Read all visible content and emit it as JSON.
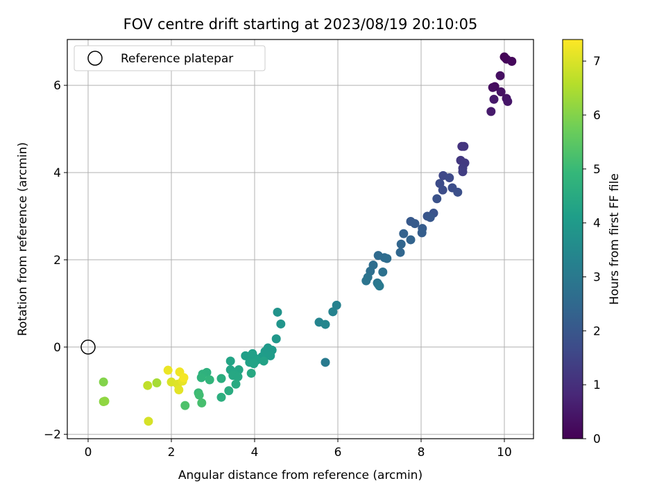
{
  "chart_data": {
    "type": "scatter",
    "title": "FOV centre drift starting at 2023/08/19 20:10:05",
    "xlabel": "Angular distance from reference (arcmin)",
    "ylabel": "Rotation from reference (arcmin)",
    "xlim": [
      -0.5,
      10.7
    ],
    "ylim": [
      -2.1,
      7.05
    ],
    "xticks": [
      0,
      2,
      4,
      6,
      8,
      10
    ],
    "yticks": [
      -2,
      0,
      2,
      4,
      6
    ],
    "grid": true,
    "legend": {
      "placement": "top-left",
      "entries": [
        "Reference platepar"
      ]
    },
    "reference_point": {
      "x": 0,
      "y": 0
    },
    "colormap": "viridis",
    "colorbar": {
      "label": "Hours from first FF file",
      "range": [
        0,
        7.4
      ],
      "ticks": [
        0,
        1,
        2,
        3,
        4,
        5,
        6,
        7
      ]
    },
    "points": [
      {
        "x": 10.0,
        "y": 6.65,
        "t": 0.05
      },
      {
        "x": 10.05,
        "y": 6.6,
        "t": 0.1
      },
      {
        "x": 10.18,
        "y": 6.55,
        "t": 0.15
      },
      {
        "x": 9.77,
        "y": 5.97,
        "t": 0.2
      },
      {
        "x": 9.72,
        "y": 5.95,
        "t": 0.25
      },
      {
        "x": 9.9,
        "y": 6.22,
        "t": 0.3
      },
      {
        "x": 9.92,
        "y": 5.85,
        "t": 0.35
      },
      {
        "x": 10.05,
        "y": 5.7,
        "t": 0.4
      },
      {
        "x": 10.08,
        "y": 5.63,
        "t": 0.45
      },
      {
        "x": 9.75,
        "y": 5.68,
        "t": 0.5
      },
      {
        "x": 9.68,
        "y": 5.4,
        "t": 0.55
      },
      {
        "x": 8.98,
        "y": 4.6,
        "t": 1.1
      },
      {
        "x": 9.03,
        "y": 4.6,
        "t": 1.15
      },
      {
        "x": 8.95,
        "y": 4.28,
        "t": 1.2
      },
      {
        "x": 9.05,
        "y": 4.22,
        "t": 1.25
      },
      {
        "x": 9.0,
        "y": 4.1,
        "t": 1.3
      },
      {
        "x": 9.0,
        "y": 4.02,
        "t": 1.35
      },
      {
        "x": 8.53,
        "y": 3.93,
        "t": 1.6
      },
      {
        "x": 8.68,
        "y": 3.88,
        "t": 1.65
      },
      {
        "x": 8.45,
        "y": 3.75,
        "t": 1.7
      },
      {
        "x": 8.52,
        "y": 3.6,
        "t": 1.72
      },
      {
        "x": 8.75,
        "y": 3.65,
        "t": 1.75
      },
      {
        "x": 8.88,
        "y": 3.55,
        "t": 1.8
      },
      {
        "x": 8.38,
        "y": 3.4,
        "t": 1.85
      },
      {
        "x": 8.3,
        "y": 3.07,
        "t": 1.9
      },
      {
        "x": 8.15,
        "y": 3.0,
        "t": 1.95
      },
      {
        "x": 8.22,
        "y": 2.97,
        "t": 2.0
      },
      {
        "x": 7.75,
        "y": 2.88,
        "t": 2.05
      },
      {
        "x": 7.85,
        "y": 2.83,
        "t": 2.1
      },
      {
        "x": 8.03,
        "y": 2.72,
        "t": 2.15
      },
      {
        "x": 8.02,
        "y": 2.62,
        "t": 2.2
      },
      {
        "x": 7.58,
        "y": 2.6,
        "t": 2.3
      },
      {
        "x": 7.75,
        "y": 2.46,
        "t": 2.35
      },
      {
        "x": 7.52,
        "y": 2.36,
        "t": 2.4
      },
      {
        "x": 7.5,
        "y": 2.17,
        "t": 2.45
      },
      {
        "x": 6.97,
        "y": 2.1,
        "t": 2.55
      },
      {
        "x": 7.12,
        "y": 2.05,
        "t": 2.6
      },
      {
        "x": 7.18,
        "y": 2.03,
        "t": 2.62
      },
      {
        "x": 6.85,
        "y": 1.88,
        "t": 2.65
      },
      {
        "x": 6.78,
        "y": 1.74,
        "t": 2.7
      },
      {
        "x": 7.08,
        "y": 1.72,
        "t": 2.75
      },
      {
        "x": 6.72,
        "y": 1.6,
        "t": 2.8
      },
      {
        "x": 6.68,
        "y": 1.52,
        "t": 2.85
      },
      {
        "x": 6.95,
        "y": 1.47,
        "t": 2.9
      },
      {
        "x": 6.97,
        "y": 1.44,
        "t": 2.95
      },
      {
        "x": 7.0,
        "y": 1.4,
        "t": 3.0
      },
      {
        "x": 5.7,
        "y": -0.35,
        "t": 3.05
      },
      {
        "x": 5.97,
        "y": 0.96,
        "t": 3.25
      },
      {
        "x": 5.88,
        "y": 0.81,
        "t": 3.3
      },
      {
        "x": 5.55,
        "y": 0.57,
        "t": 3.35
      },
      {
        "x": 5.7,
        "y": 0.52,
        "t": 3.4
      },
      {
        "x": 4.55,
        "y": 0.8,
        "t": 3.8
      },
      {
        "x": 4.63,
        "y": 0.53,
        "t": 3.85
      },
      {
        "x": 4.52,
        "y": 0.19,
        "t": 3.9
      },
      {
        "x": 4.32,
        "y": -0.02,
        "t": 3.95
      },
      {
        "x": 4.42,
        "y": -0.07,
        "t": 4.0
      },
      {
        "x": 4.25,
        "y": -0.1,
        "t": 4.02
      },
      {
        "x": 4.38,
        "y": -0.2,
        "t": 4.05
      },
      {
        "x": 4.18,
        "y": -0.22,
        "t": 4.08
      },
      {
        "x": 4.0,
        "y": -0.25,
        "t": 4.1
      },
      {
        "x": 3.9,
        "y": -0.2,
        "t": 4.12
      },
      {
        "x": 3.78,
        "y": -0.2,
        "t": 4.15
      },
      {
        "x": 3.95,
        "y": -0.15,
        "t": 4.18
      },
      {
        "x": 4.05,
        "y": -0.3,
        "t": 4.2
      },
      {
        "x": 3.88,
        "y": -0.35,
        "t": 4.22
      },
      {
        "x": 4.22,
        "y": -0.32,
        "t": 4.25
      },
      {
        "x": 3.98,
        "y": -0.38,
        "t": 4.28
      },
      {
        "x": 3.42,
        "y": -0.32,
        "t": 4.3
      },
      {
        "x": 3.42,
        "y": -0.52,
        "t": 4.32
      },
      {
        "x": 3.62,
        "y": -0.52,
        "t": 4.35
      },
      {
        "x": 3.5,
        "y": -0.6,
        "t": 4.38
      },
      {
        "x": 3.48,
        "y": -0.65,
        "t": 4.4
      },
      {
        "x": 3.6,
        "y": -0.68,
        "t": 4.42
      },
      {
        "x": 3.92,
        "y": -0.6,
        "t": 4.45
      },
      {
        "x": 3.55,
        "y": -0.85,
        "t": 4.5
      },
      {
        "x": 3.38,
        "y": -1.0,
        "t": 4.55
      },
      {
        "x": 3.2,
        "y": -0.72,
        "t": 4.6
      },
      {
        "x": 3.2,
        "y": -1.15,
        "t": 4.65
      },
      {
        "x": 2.85,
        "y": -0.58,
        "t": 4.7
      },
      {
        "x": 2.75,
        "y": -0.62,
        "t": 4.75
      },
      {
        "x": 2.72,
        "y": -0.7,
        "t": 4.8
      },
      {
        "x": 2.92,
        "y": -0.75,
        "t": 4.85
      },
      {
        "x": 2.65,
        "y": -1.05,
        "t": 5.0
      },
      {
        "x": 2.67,
        "y": -1.1,
        "t": 5.1
      },
      {
        "x": 2.73,
        "y": -1.28,
        "t": 5.2
      },
      {
        "x": 2.33,
        "y": -1.34,
        "t": 5.3
      },
      {
        "x": 0.37,
        "y": -0.8,
        "t": 6.0
      },
      {
        "x": 0.37,
        "y": -1.25,
        "t": 6.1
      },
      {
        "x": 0.4,
        "y": -1.24,
        "t": 6.15
      },
      {
        "x": 1.65,
        "y": -0.82,
        "t": 6.4
      },
      {
        "x": 1.43,
        "y": -0.88,
        "t": 6.7
      },
      {
        "x": 1.45,
        "y": -1.7,
        "t": 6.95
      },
      {
        "x": 2.0,
        "y": -0.8,
        "t": 7.0
      },
      {
        "x": 2.15,
        "y": -0.85,
        "t": 7.05
      },
      {
        "x": 2.18,
        "y": -0.98,
        "t": 7.1
      },
      {
        "x": 2.27,
        "y": -0.78,
        "t": 7.15
      },
      {
        "x": 1.92,
        "y": -0.53,
        "t": 7.2
      },
      {
        "x": 2.2,
        "y": -0.57,
        "t": 7.25
      },
      {
        "x": 2.3,
        "y": -0.7,
        "t": 7.3
      }
    ]
  }
}
